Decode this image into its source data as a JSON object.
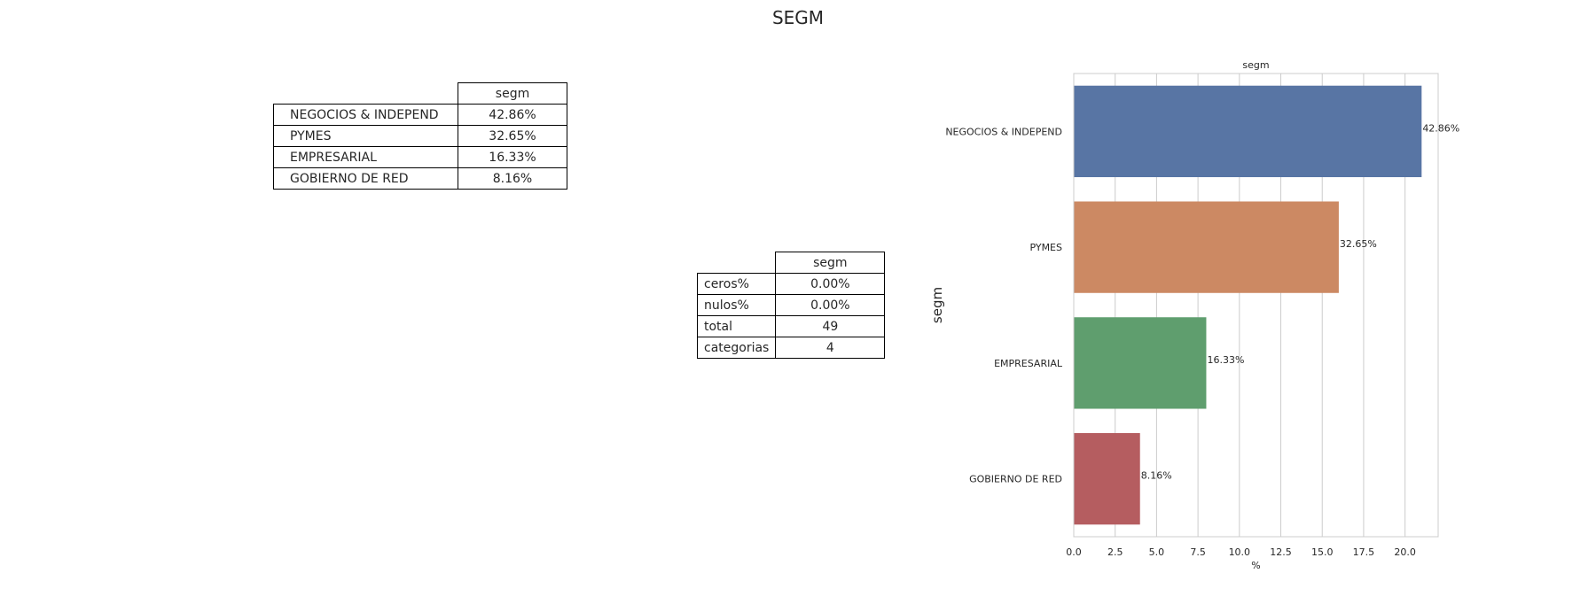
{
  "figure_title": "SEGM",
  "freq_table": {
    "header": "segm",
    "rows": [
      {
        "label": "NEGOCIOS & INDEPEND",
        "value": "42.86%"
      },
      {
        "label": "PYMES",
        "value": "32.65%"
      },
      {
        "label": "EMPRESARIAL",
        "value": "16.33%"
      },
      {
        "label": "GOBIERNO DE RED",
        "value": "8.16%"
      }
    ]
  },
  "summary_table": {
    "header": "segm",
    "rows": [
      {
        "label": "ceros%",
        "value": "0.00%"
      },
      {
        "label": "nulos%",
        "value": "0.00%"
      },
      {
        "label": "total",
        "value": "49"
      },
      {
        "label": "categorias",
        "value": "4"
      }
    ]
  },
  "chart_data": {
    "type": "bar",
    "orientation": "horizontal",
    "title": "segm",
    "xlabel": "%",
    "ylabel": "segm",
    "categories": [
      "NEGOCIOS & INDEPEND",
      "PYMES",
      "EMPRESARIAL",
      "GOBIERNO DE RED"
    ],
    "values": [
      21.0,
      16.0,
      8.0,
      4.0
    ],
    "data_labels": [
      "42.86%",
      "32.65%",
      "16.33%",
      "8.16%"
    ],
    "colors": [
      "#5875a4",
      "#cc8963",
      "#5f9e6e",
      "#b55d60"
    ],
    "xlim": [
      0,
      22
    ],
    "xticks": [
      0.0,
      2.5,
      5.0,
      7.5,
      10.0,
      12.5,
      15.0,
      17.5,
      20.0
    ],
    "xtick_labels": [
      "0.0",
      "2.5",
      "5.0",
      "7.5",
      "10.0",
      "12.5",
      "15.0",
      "17.5",
      "20.0"
    ],
    "grid": "vertical"
  }
}
